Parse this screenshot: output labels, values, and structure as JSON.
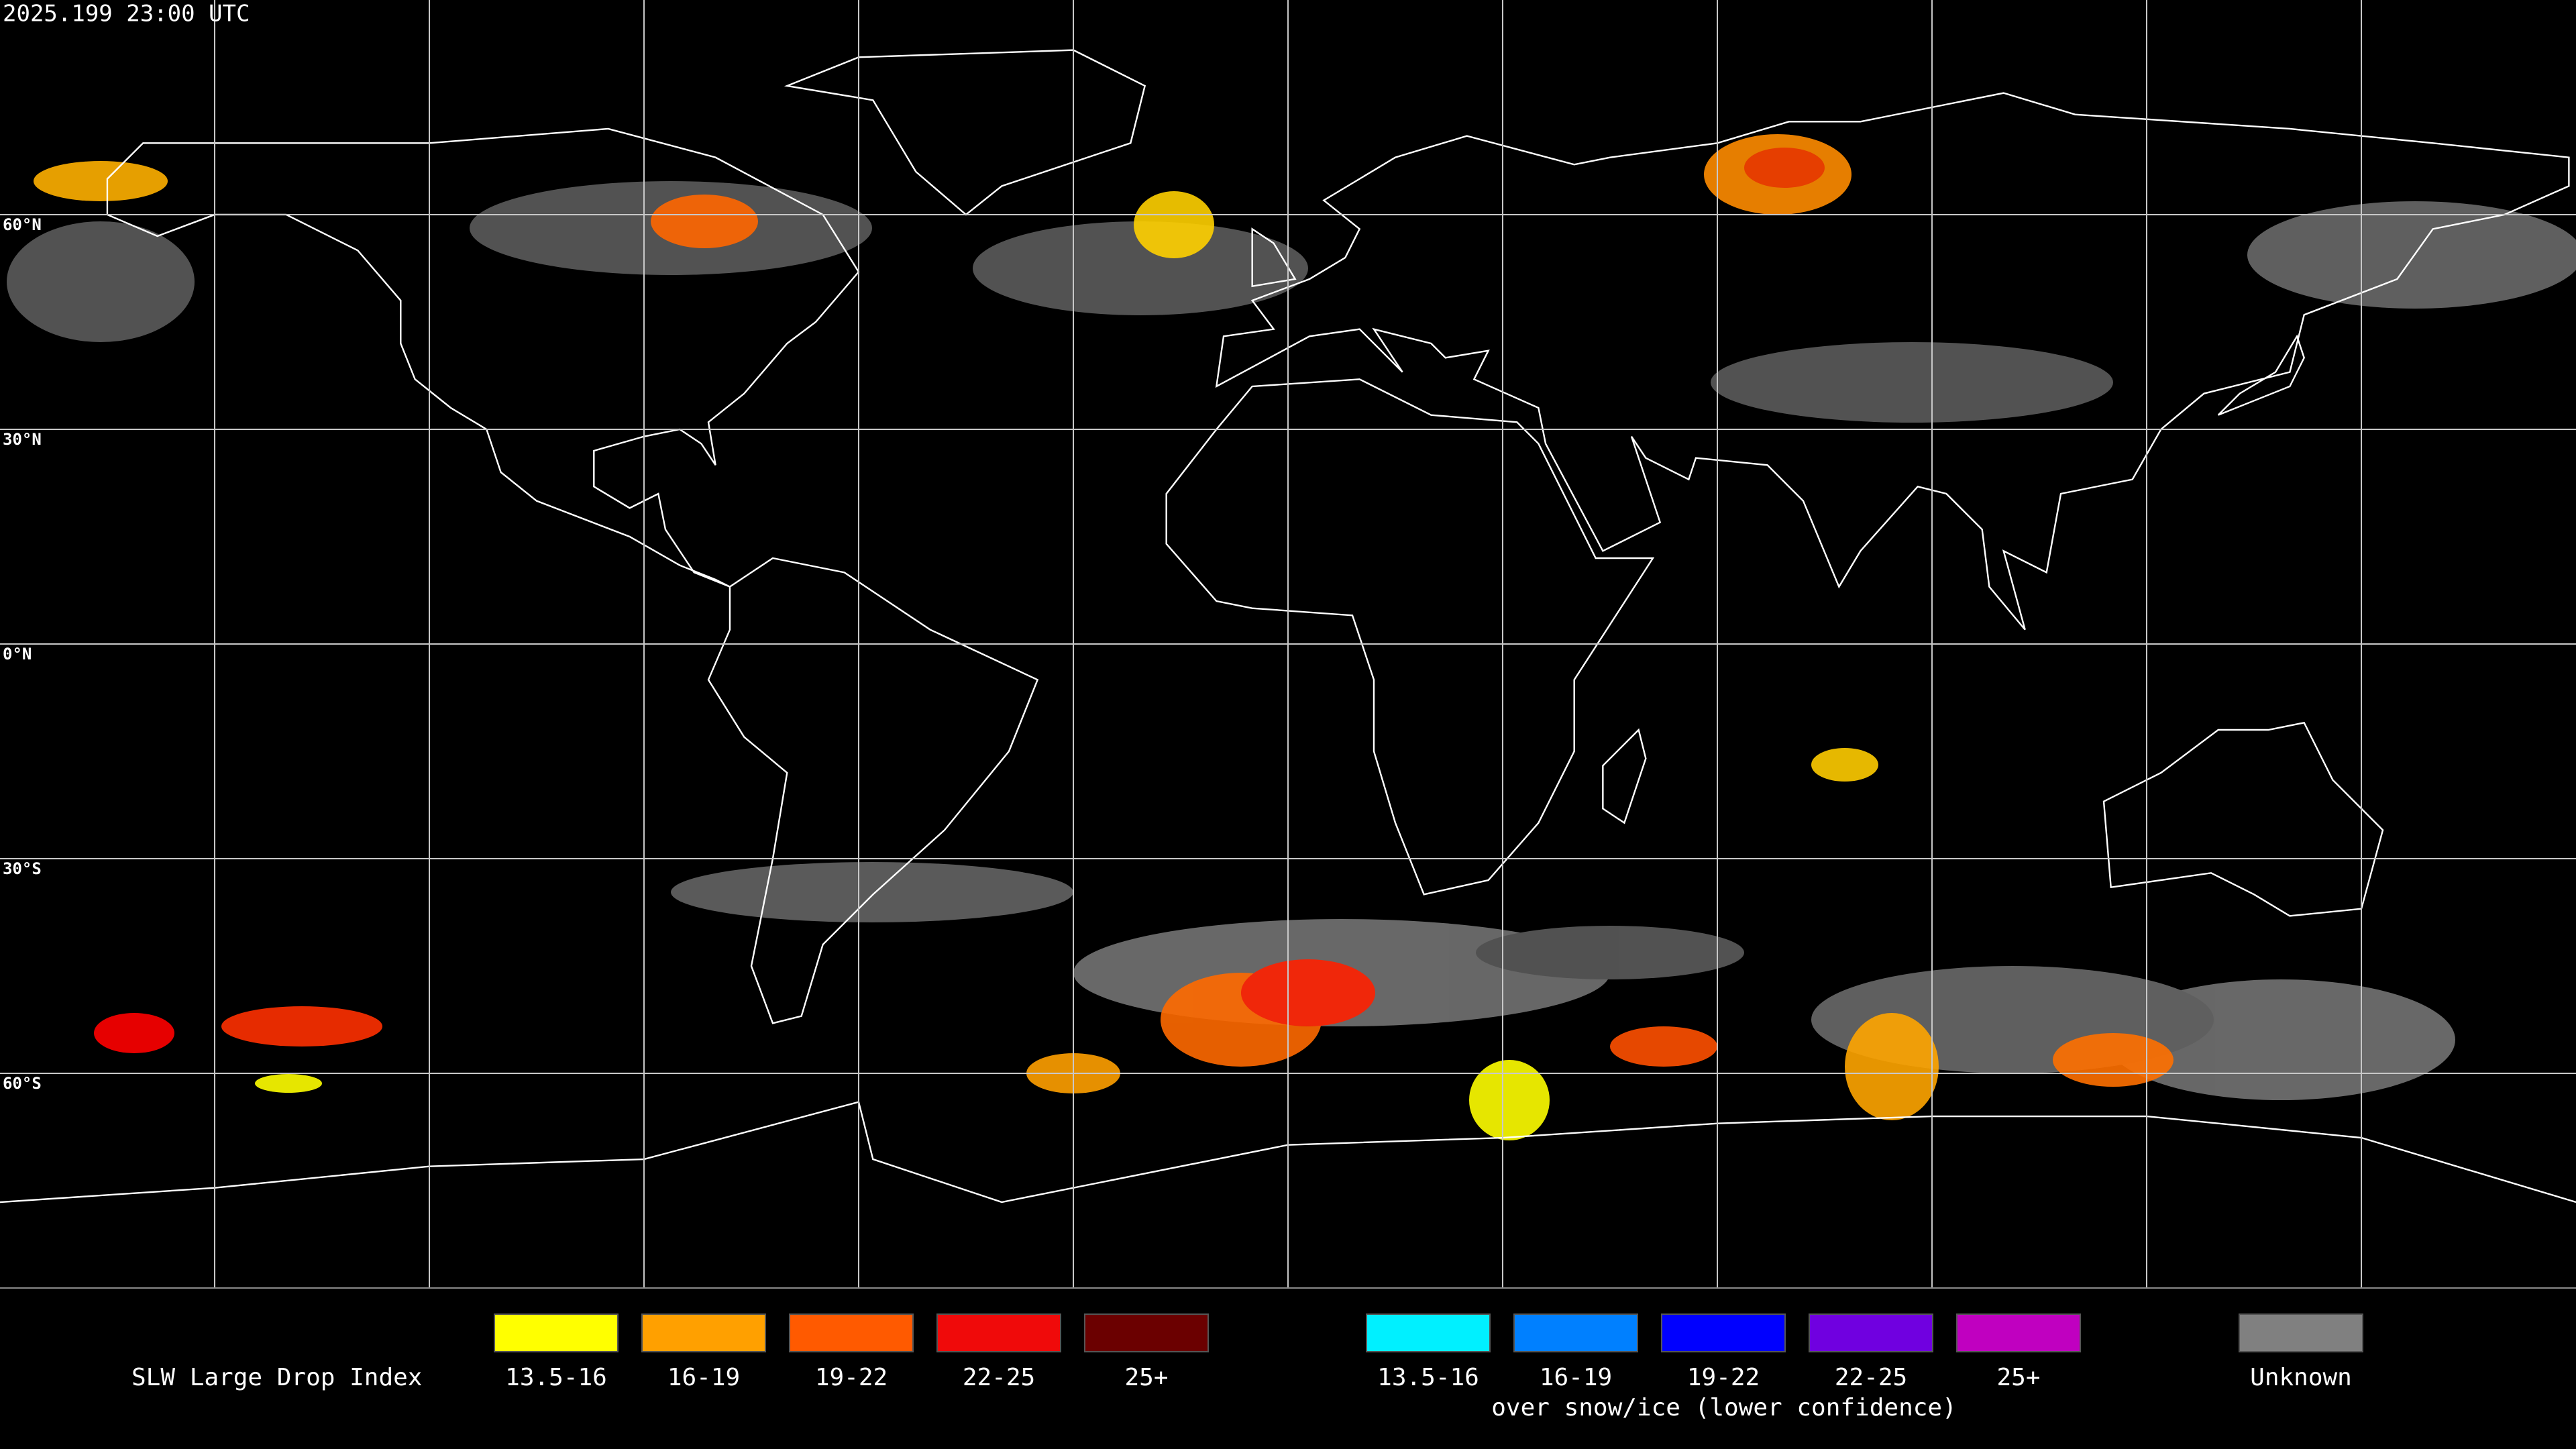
{
  "timestamp": "2025.199 23:00 UTC",
  "latitude_labels": [
    "60°N",
    "30°N",
    "0°N",
    "30°S",
    "60°S"
  ],
  "legend": {
    "title": "SLW Large Drop Index",
    "items": [
      {
        "label": "13.5-16",
        "color": "#ffff00"
      },
      {
        "label": "16-19",
        "color": "#ffa000"
      },
      {
        "label": "19-22",
        "color": "#ff5a00"
      },
      {
        "label": "22-25",
        "color": "#f00a0a"
      },
      {
        "label": "25+",
        "color": "#6b0000"
      }
    ],
    "snow_ice_items": [
      {
        "label": "13.5-16",
        "color": "#00f0ff"
      },
      {
        "label": "16-19",
        "color": "#0080ff"
      },
      {
        "label": "19-22",
        "color": "#0000ff"
      },
      {
        "label": "22-25",
        "color": "#7000e0"
      },
      {
        "label": "25+",
        "color": "#c000c0"
      }
    ],
    "snow_ice_caption": "over snow/ice (lower confidence)",
    "unknown": {
      "label": "Unknown",
      "color": "#808080"
    }
  }
}
